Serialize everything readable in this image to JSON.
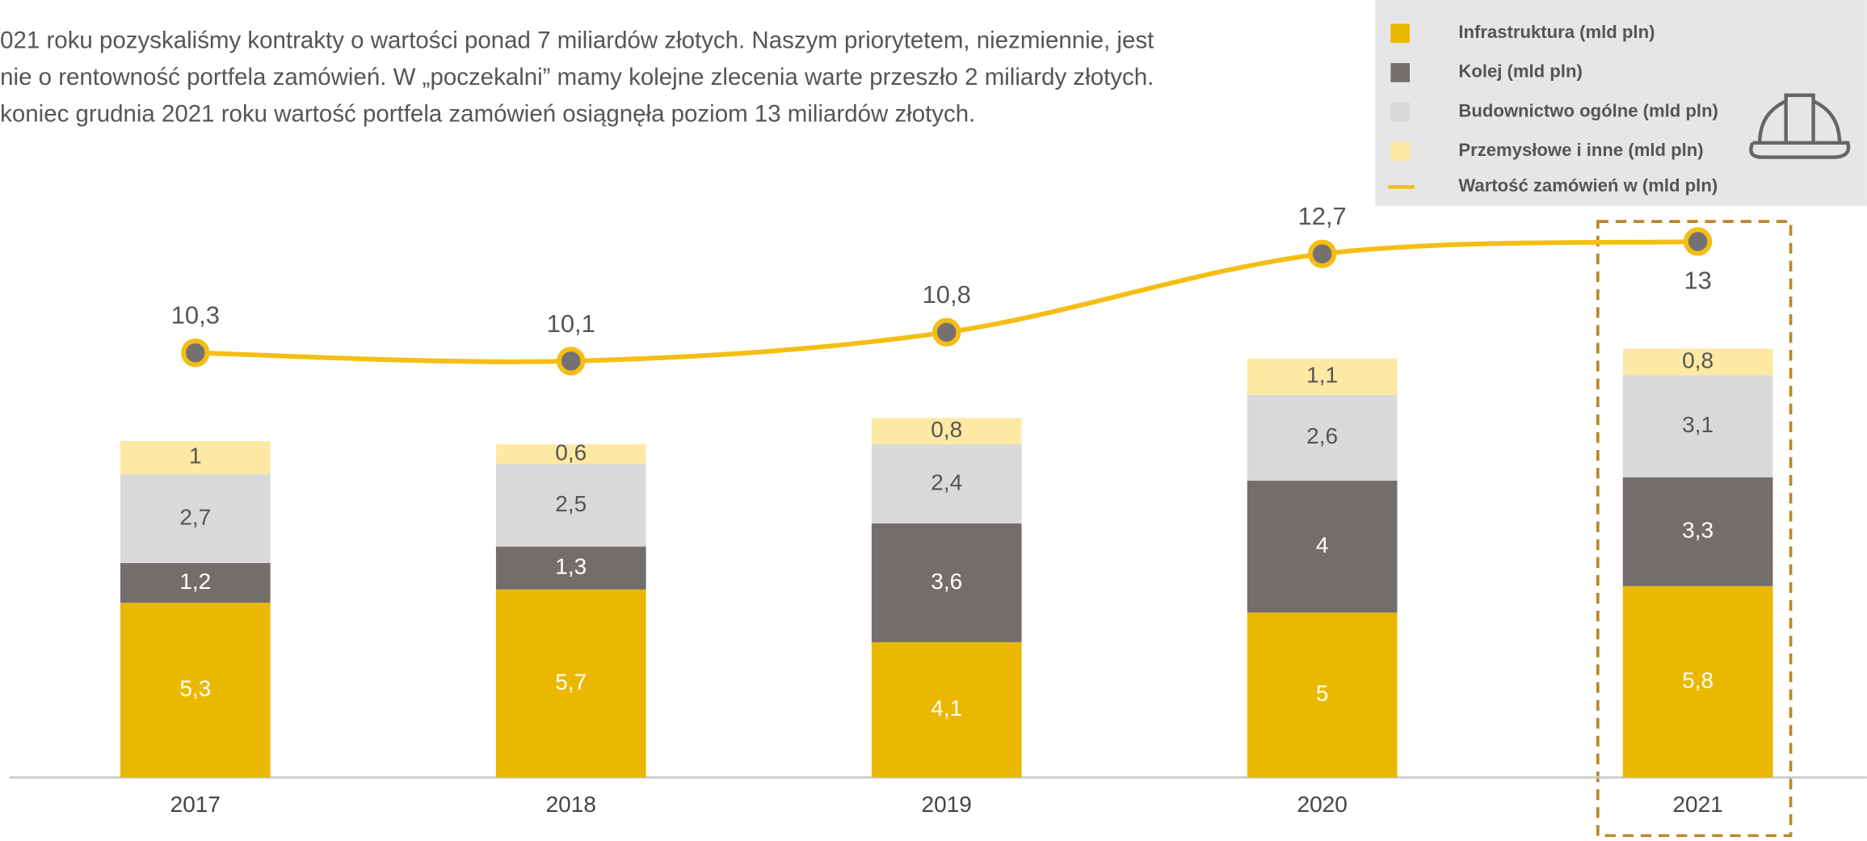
{
  "text_lines": [
    "021 roku pozyskaliśmy kontrakty o wartości ponad 7 miliardów złotych. Naszym priorytetem, niezmiennie, jest",
    "nie o rentowność portfela zamówień. W „poczekalni” mamy kolejne zlecenia warte przeszło 2 miliardy złotych.",
    "koniec grudnia 2021 roku wartość portfela zamówień osiągnęła poziom 13 miliardów złotych."
  ],
  "chart_data": {
    "type": "bar",
    "stacked": true,
    "categories": [
      "2017",
      "2018",
      "2019",
      "2020",
      "2021"
    ],
    "ylim": [
      0,
      20
    ],
    "y2lim": [
      0,
      16
    ],
    "series": [
      {
        "name": "Infrastruktura (mld pln)",
        "color": "#eab800",
        "values": [
          5.3,
          5.7,
          4.1,
          5,
          5.8
        ],
        "value_labels": [
          "5,3",
          "5,7",
          "4,1",
          "5",
          "5,8"
        ]
      },
      {
        "name": "Kolej (mld pln)",
        "color": "#736e6c",
        "values": [
          1.2,
          1.3,
          3.6,
          4,
          3.3
        ],
        "value_labels": [
          "1,2",
          "1,3",
          "3,6",
          "4",
          "3,3"
        ]
      },
      {
        "name": "Budownictwo ogólne (mld pln)",
        "color": "#d9d9d9",
        "values": [
          2.7,
          2.5,
          2.4,
          2.6,
          3.1
        ],
        "value_labels": [
          "2,7",
          "2,5",
          "2,4",
          "2,6",
          "3,1"
        ]
      },
      {
        "name": "Przemysłowe i inne (mld pln)",
        "color": "#fde9a3",
        "values": [
          1,
          0.6,
          0.8,
          1.1,
          0.8
        ],
        "value_labels": [
          "1",
          "0,6",
          "0,8",
          "1,1",
          "0,8"
        ]
      },
      {
        "name": "Wartość zamówień w (mld pln)",
        "type": "line",
        "axis": "y2",
        "color": "#f5be14",
        "values": [
          10.3,
          10.1,
          10.8,
          12.7,
          13
        ],
        "value_labels": [
          "10,3",
          "10,1",
          "10,8",
          "12,7",
          "13"
        ]
      }
    ]
  }
}
